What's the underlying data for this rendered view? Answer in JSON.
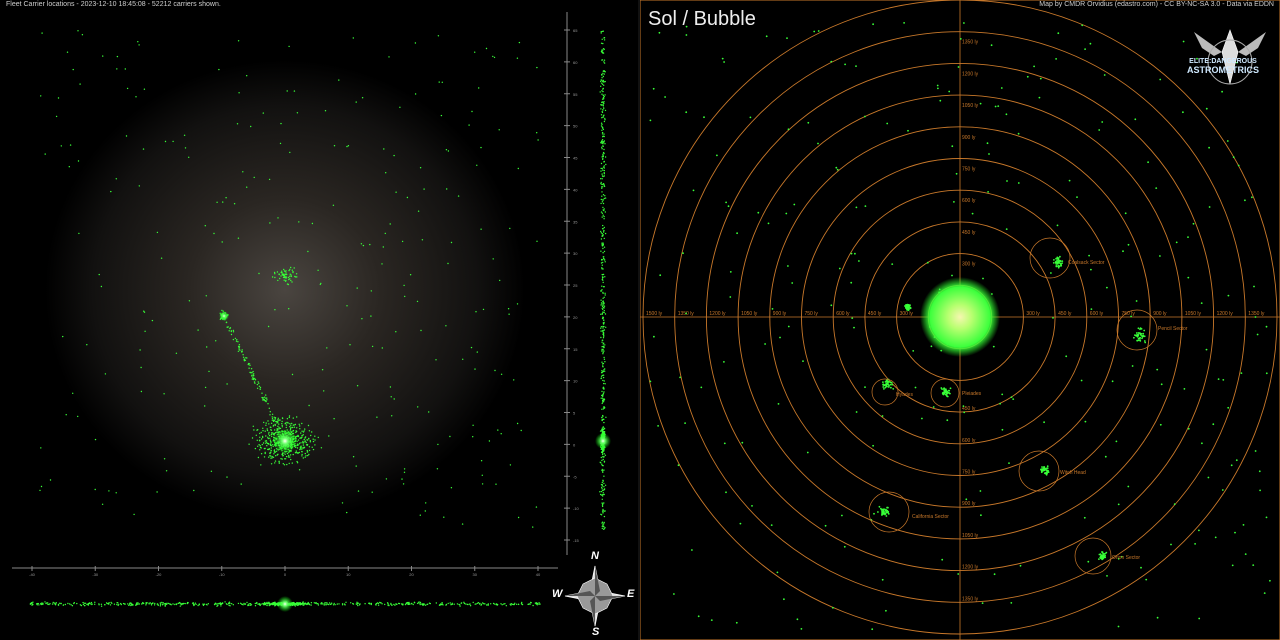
{
  "left": {
    "caption": "Fleet Carrier locations - 2023-12-10 18:45:08 - 52212 carriers shown.",
    "side_axis_ticks": [
      "65",
      "60",
      "55",
      "50",
      "45",
      "40",
      "35",
      "30",
      "25",
      "20",
      "15",
      "10",
      "5",
      "0",
      "-5",
      "-10",
      "-15"
    ],
    "bottom_axis_ticks": [
      "-40",
      "-30",
      "-20",
      "-10",
      "0",
      "10",
      "20",
      "30",
      "40"
    ],
    "compass": {
      "n": "N",
      "s": "S",
      "e": "E",
      "w": "W"
    }
  },
  "right": {
    "title": "Sol / Bubble",
    "caption": "Map by CMDR Orvidius (edastro.com) - CC BY-NC-SA 3.0 - Data via EDDN",
    "logo": {
      "line1": "ELITE:DANGEROUS",
      "line2": "ASTROMETRICS"
    },
    "ring_labels": [
      "150 ly",
      "300 ly",
      "450 ly",
      "600 ly",
      "750 ly",
      "900 ly",
      "1050 ly",
      "1200 ly",
      "1350 ly",
      "1500 ly"
    ],
    "axis_labels_left": [
      "1500 ly",
      "1350 ly",
      "1200 ly",
      "1050 ly",
      "900 ly",
      "750 ly",
      "600 ly",
      "450 ly",
      "300 ly"
    ],
    "axis_labels_right": [
      "300 ly",
      "450 ly",
      "600 ly",
      "750 ly",
      "900 ly",
      "1050 ly",
      "1200 ly",
      "1350 ly"
    ],
    "axis_labels_top": [
      "1350 ly",
      "1200 ly",
      "1050 ly",
      "900 ly",
      "750 ly",
      "600 ly",
      "450 ly",
      "300 ly"
    ],
    "axis_labels_bottom": [
      "450 ly",
      "600 ly",
      "750 ly",
      "900 ly",
      "1050 ly",
      "1200 ly",
      "1350 ly"
    ],
    "regions": [
      {
        "name": "Coalsack Sector"
      },
      {
        "name": "Pencil Sector"
      },
      {
        "name": "Hyades"
      },
      {
        "name": "Pleiades"
      },
      {
        "name": "Witch Head"
      },
      {
        "name": "California Sector"
      },
      {
        "name": "Orion Sector"
      }
    ]
  },
  "colors": {
    "ring": "#c8782a",
    "point": "#38ff38",
    "core": "#f5f5a0"
  }
}
